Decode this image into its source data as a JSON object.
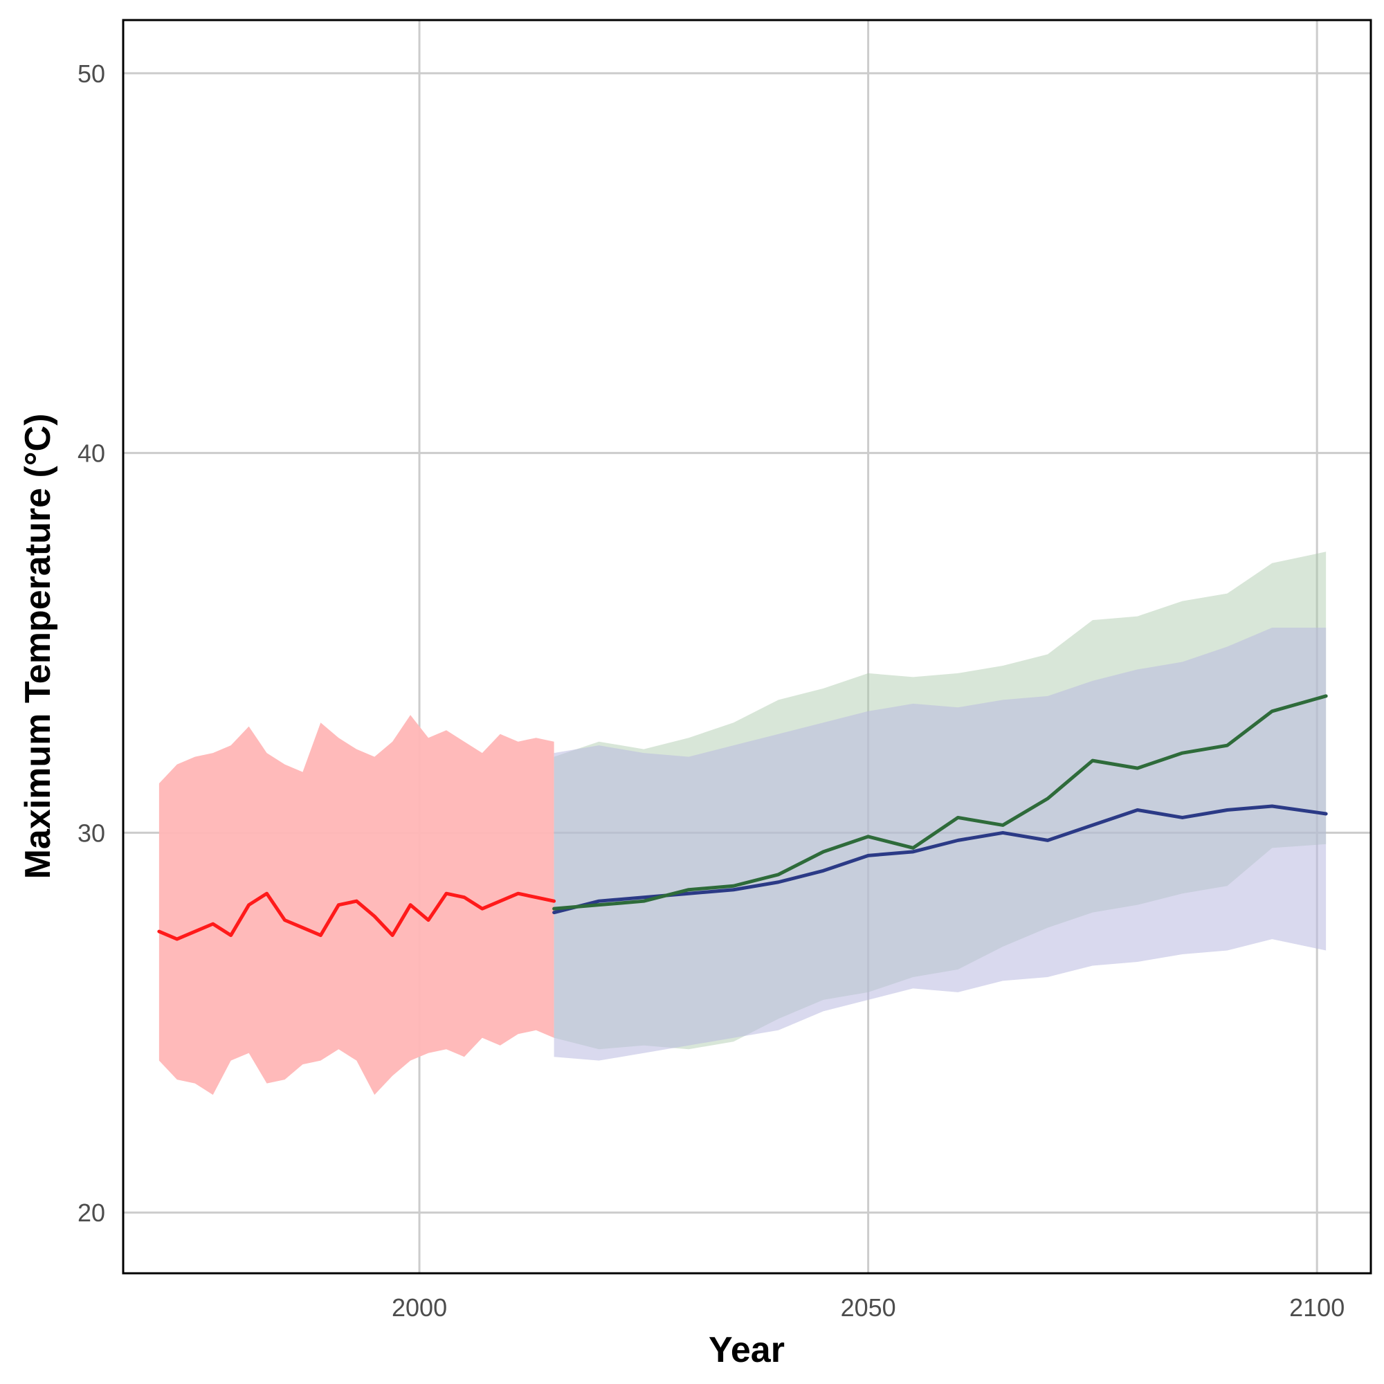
{
  "chart_data": {
    "type": "line",
    "title": "",
    "xlabel": "Year",
    "ylabel": "Maximum Temperature (°C)",
    "xlim": [
      1967,
      2106
    ],
    "ylim": [
      18.4,
      51.4
    ],
    "x_ticks": [
      2000,
      2050,
      2100
    ],
    "y_ticks": [
      20,
      30,
      40,
      50
    ],
    "grid": true,
    "legend": "none",
    "colors": {
      "historical_line": "#ff1a1a",
      "historical_band": "#ffb6b6",
      "green_line": "#2e6b3a",
      "green_band": "#a9c8a9",
      "blue_line": "#2b3a86",
      "blue_band": "#b9b9e0",
      "grid": "#cccccc",
      "border": "#000000"
    },
    "series": [
      {
        "x": [
          1971,
          1973,
          1975,
          1977,
          1979,
          1981,
          1983,
          1985,
          1987,
          1989,
          1991,
          1993,
          1995,
          1997,
          1999,
          2001,
          2003,
          2005,
          2007,
          2009,
          2011,
          2013,
          2015
        ],
        "values": [
          27.4,
          27.2,
          27.4,
          27.6,
          27.3,
          28.1,
          28.4,
          27.7,
          27.5,
          27.3,
          28.1,
          28.2,
          27.8,
          27.3,
          28.1,
          27.7,
          28.4,
          28.3,
          28.0,
          28.2,
          28.4,
          28.3,
          28.2
        ],
        "upper": [
          31.3,
          31.8,
          32.0,
          32.1,
          32.3,
          32.8,
          32.1,
          31.8,
          31.6,
          32.9,
          32.5,
          32.2,
          32.0,
          32.4,
          33.1,
          32.5,
          32.7,
          32.4,
          32.1,
          32.6,
          32.4,
          32.5,
          32.4
        ],
        "lower": [
          24.0,
          23.5,
          23.4,
          23.1,
          24.0,
          24.2,
          23.4,
          23.5,
          23.9,
          24.0,
          24.3,
          24.0,
          23.1,
          23.6,
          24.0,
          24.2,
          24.3,
          24.1,
          24.6,
          24.4,
          24.7,
          24.8,
          24.6
        ]
      },
      {
        "x": [
          2015,
          2020,
          2025,
          2030,
          2035,
          2040,
          2045,
          2050,
          2055,
          2060,
          2065,
          2070,
          2075,
          2080,
          2085,
          2090,
          2095,
          2101
        ],
        "values": [
          28.0,
          28.1,
          28.2,
          28.5,
          28.6,
          28.9,
          29.5,
          29.9,
          29.6,
          30.4,
          30.2,
          30.9,
          31.9,
          31.7,
          32.1,
          32.3,
          33.2,
          33.6
        ],
        "upper": [
          32.0,
          32.4,
          32.2,
          32.5,
          32.9,
          33.5,
          33.8,
          34.2,
          34.1,
          34.2,
          34.4,
          34.7,
          35.6,
          35.7,
          36.1,
          36.3,
          37.1,
          37.4
        ],
        "lower": [
          24.6,
          24.3,
          24.4,
          24.3,
          24.5,
          25.1,
          25.6,
          25.8,
          26.2,
          26.4,
          27.0,
          27.5,
          27.9,
          28.1,
          28.4,
          28.6,
          29.6,
          29.7
        ]
      },
      {
        "x": [
          2015,
          2020,
          2025,
          2030,
          2035,
          2040,
          2045,
          2050,
          2055,
          2060,
          2065,
          2070,
          2075,
          2080,
          2085,
          2090,
          2095,
          2101
        ],
        "values": [
          27.9,
          28.2,
          28.3,
          28.4,
          28.5,
          28.7,
          29.0,
          29.4,
          29.5,
          29.8,
          30.0,
          29.8,
          30.2,
          30.6,
          30.4,
          30.6,
          30.7,
          30.5
        ],
        "upper": [
          32.1,
          32.3,
          32.1,
          32.0,
          32.3,
          32.6,
          32.9,
          33.2,
          33.4,
          33.3,
          33.5,
          33.6,
          34.0,
          34.3,
          34.5,
          34.9,
          35.4,
          35.4
        ],
        "lower": [
          24.1,
          24.0,
          24.2,
          24.4,
          24.6,
          24.8,
          25.3,
          25.6,
          25.9,
          25.8,
          26.1,
          26.2,
          26.5,
          26.6,
          26.8,
          26.9,
          27.2,
          26.9
        ]
      }
    ]
  }
}
